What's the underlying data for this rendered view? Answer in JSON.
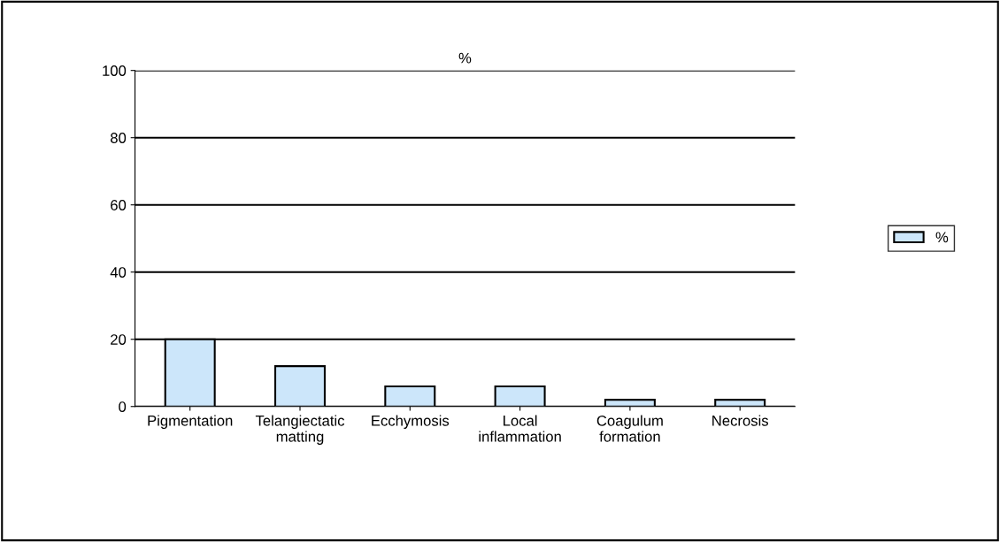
{
  "chart_data": {
    "type": "bar",
    "title": "%",
    "categories": [
      "Pigmentation",
      "Telangiectatic\nmatting",
      "Ecchymosis",
      "Local\ninflammation",
      "Coagulum\nformation",
      "Necrosis"
    ],
    "series": [
      {
        "name": "%",
        "color": "#cce6fa",
        "values": [
          20,
          12,
          6,
          6,
          2,
          2
        ]
      }
    ],
    "ylim": [
      0,
      100
    ],
    "yticks": [
      0,
      20,
      40,
      60,
      80,
      100
    ],
    "grid": "y",
    "legend": "right"
  }
}
